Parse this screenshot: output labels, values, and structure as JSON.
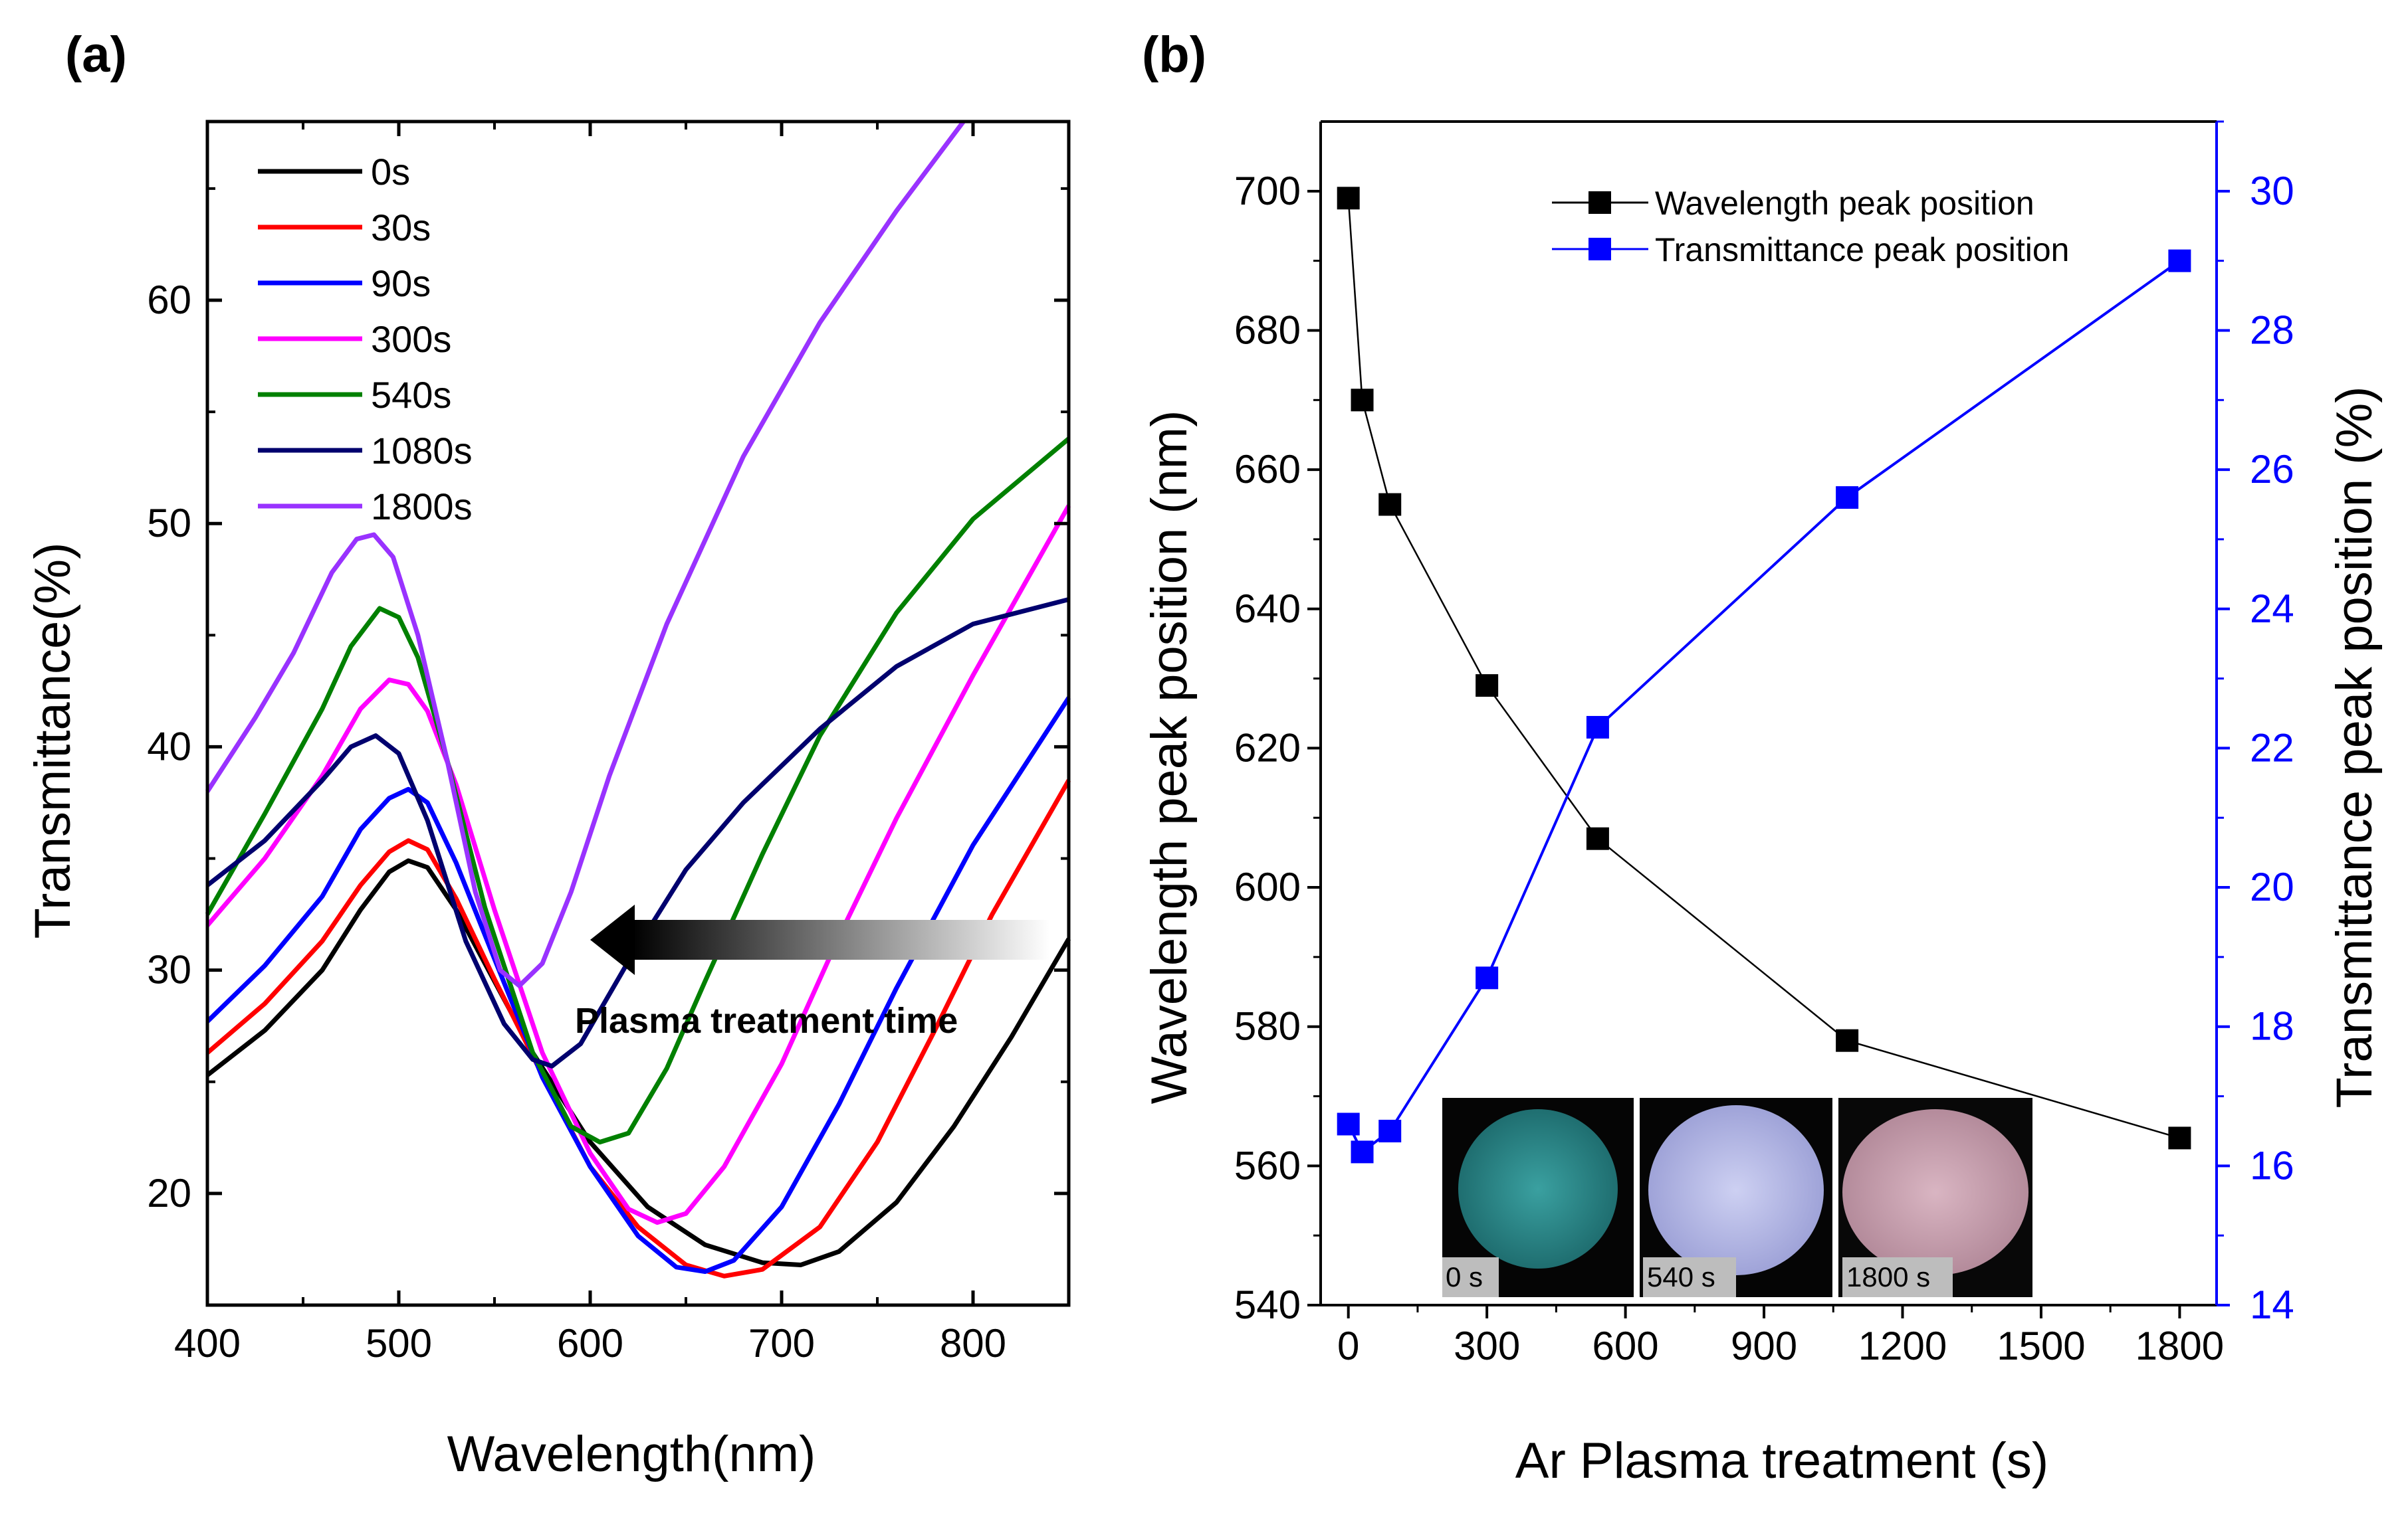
{
  "panels": [
    {
      "id": "a",
      "label": "(a)"
    },
    {
      "id": "b",
      "label": "(b)"
    }
  ],
  "annotation_arrow": {
    "text": "Plasma treatment time"
  },
  "insets": [
    {
      "label": "0 s",
      "color": "#2f8d8e"
    },
    {
      "label": "540 s",
      "color": "#b3b7e6"
    },
    {
      "label": "1800 s",
      "color": "#c8a3b1"
    }
  ],
  "chart_data": [
    {
      "type": "line",
      "panel": "a",
      "xlabel": "Wavelength(nm)",
      "ylabel": "Transmittance(%)",
      "xlim": [
        400,
        850
      ],
      "ylim": [
        15,
        68
      ],
      "xticks": [
        400,
        500,
        600,
        700,
        800
      ],
      "yticks": [
        20,
        30,
        40,
        50,
        60
      ],
      "legend_position": "top-left",
      "series": [
        {
          "name": "0s",
          "color": "#000000",
          "points": [
            [
              400,
              25.3
            ],
            [
              430,
              27.3
            ],
            [
              460,
              30.0
            ],
            [
              480,
              32.7
            ],
            [
              495,
              34.4
            ],
            [
              505,
              34.9
            ],
            [
              515,
              34.6
            ],
            [
              530,
              32.7
            ],
            [
              550,
              29.5
            ],
            [
              570,
              26.3
            ],
            [
              600,
              22.3
            ],
            [
              630,
              19.4
            ],
            [
              660,
              17.7
            ],
            [
              690,
              16.9
            ],
            [
              710,
              16.8
            ],
            [
              730,
              17.4
            ],
            [
              760,
              19.6
            ],
            [
              790,
              23.0
            ],
            [
              820,
              27.0
            ],
            [
              850,
              31.4
            ]
          ]
        },
        {
          "name": "30s",
          "color": "#ff0000",
          "points": [
            [
              400,
              26.3
            ],
            [
              430,
              28.5
            ],
            [
              460,
              31.3
            ],
            [
              480,
              33.8
            ],
            [
              495,
              35.3
            ],
            [
              505,
              35.8
            ],
            [
              515,
              35.4
            ],
            [
              530,
              33.2
            ],
            [
              550,
              29.6
            ],
            [
              575,
              25.3
            ],
            [
              600,
              21.2
            ],
            [
              625,
              18.5
            ],
            [
              650,
              16.8
            ],
            [
              670,
              16.3
            ],
            [
              690,
              16.6
            ],
            [
              720,
              18.5
            ],
            [
              750,
              22.3
            ],
            [
              780,
              27.3
            ],
            [
              810,
              32.5
            ],
            [
              850,
              38.5
            ]
          ]
        },
        {
          "name": "90s",
          "color": "#0000ff",
          "points": [
            [
              400,
              27.7
            ],
            [
              430,
              30.2
            ],
            [
              460,
              33.3
            ],
            [
              480,
              36.3
            ],
            [
              495,
              37.7
            ],
            [
              505,
              38.1
            ],
            [
              515,
              37.5
            ],
            [
              530,
              34.8
            ],
            [
              550,
              30.5
            ],
            [
              575,
              25.2
            ],
            [
              600,
              21.2
            ],
            [
              625,
              18.1
            ],
            [
              645,
              16.7
            ],
            [
              660,
              16.5
            ],
            [
              675,
              17.0
            ],
            [
              700,
              19.4
            ],
            [
              730,
              24.0
            ],
            [
              760,
              29.2
            ],
            [
              800,
              35.6
            ],
            [
              850,
              42.2
            ]
          ]
        },
        {
          "name": "300s",
          "color": "#ff00ff",
          "points": [
            [
              400,
              32.0
            ],
            [
              430,
              35.0
            ],
            [
              460,
              38.7
            ],
            [
              480,
              41.7
            ],
            [
              495,
              43.0
            ],
            [
              505,
              42.8
            ],
            [
              515,
              41.6
            ],
            [
              530,
              38.3
            ],
            [
              550,
              32.7
            ],
            [
              575,
              26.3
            ],
            [
              600,
              21.8
            ],
            [
              620,
              19.3
            ],
            [
              635,
              18.7
            ],
            [
              650,
              19.1
            ],
            [
              670,
              21.2
            ],
            [
              700,
              25.8
            ],
            [
              730,
              31.5
            ],
            [
              760,
              36.8
            ],
            [
              800,
              43.2
            ],
            [
              850,
              50.8
            ]
          ]
        },
        {
          "name": "540s",
          "color": "#008000",
          "points": [
            [
              400,
              32.5
            ],
            [
              430,
              37.0
            ],
            [
              460,
              41.7
            ],
            [
              475,
              44.5
            ],
            [
              490,
              46.2
            ],
            [
              500,
              45.8
            ],
            [
              510,
              44.0
            ],
            [
              525,
              39.5
            ],
            [
              545,
              32.8
            ],
            [
              570,
              26.3
            ],
            [
              590,
              23.0
            ],
            [
              605,
              22.3
            ],
            [
              620,
              22.7
            ],
            [
              640,
              25.6
            ],
            [
              660,
              29.5
            ],
            [
              690,
              35.2
            ],
            [
              720,
              40.5
            ],
            [
              760,
              46.0
            ],
            [
              800,
              50.2
            ],
            [
              850,
              53.8
            ]
          ]
        },
        {
          "name": "1080s",
          "color": "#00006e",
          "points": [
            [
              400,
              33.8
            ],
            [
              430,
              35.8
            ],
            [
              460,
              38.5
            ],
            [
              475,
              40.0
            ],
            [
              488,
              40.5
            ],
            [
              500,
              39.7
            ],
            [
              515,
              36.7
            ],
            [
              535,
              31.3
            ],
            [
              555,
              27.6
            ],
            [
              570,
              26.0
            ],
            [
              580,
              25.7
            ],
            [
              595,
              26.7
            ],
            [
              620,
              30.4
            ],
            [
              650,
              34.5
            ],
            [
              680,
              37.5
            ],
            [
              720,
              40.8
            ],
            [
              760,
              43.6
            ],
            [
              800,
              45.5
            ],
            [
              850,
              46.6
            ]
          ]
        },
        {
          "name": "1800s",
          "color": "#9932ff",
          "points": [
            [
              400,
              38.0
            ],
            [
              425,
              41.3
            ],
            [
              445,
              44.2
            ],
            [
              465,
              47.8
            ],
            [
              478,
              49.3
            ],
            [
              487,
              49.5
            ],
            [
              497,
              48.5
            ],
            [
              510,
              45.0
            ],
            [
              525,
              39.5
            ],
            [
              540,
              33.5
            ],
            [
              553,
              30.0
            ],
            [
              563,
              29.3
            ],
            [
              575,
              30.3
            ],
            [
              590,
              33.5
            ],
            [
              610,
              38.7
            ],
            [
              640,
              45.5
            ],
            [
              680,
              53.0
            ],
            [
              720,
              59.0
            ],
            [
              760,
              64.0
            ],
            [
              795,
              68.0
            ]
          ]
        }
      ]
    },
    {
      "type": "line",
      "panel": "b",
      "xlabel": "Ar Plasma treatment (s)",
      "ylabel": "Wavelength peak position (nm)",
      "ylabel_right": "Transmittance peak position (%)",
      "xlim": [
        -60,
        1880
      ],
      "ylim": [
        540,
        710
      ],
      "ylim_right": [
        14,
        31
      ],
      "xticks": [
        0,
        300,
        600,
        900,
        1200,
        1500,
        1800
      ],
      "yticks": [
        540,
        560,
        580,
        600,
        620,
        640,
        660,
        680,
        700
      ],
      "yticks_right": [
        14,
        16,
        18,
        20,
        22,
        24,
        26,
        28,
        30
      ],
      "legend_position": "top-right",
      "series": [
        {
          "name": "Wavelength peak position",
          "axis": "left",
          "color": "#000000",
          "x": [
            0,
            30,
            90,
            300,
            540,
            1080,
            1800
          ],
          "y": [
            699,
            670,
            655,
            629,
            607,
            578,
            564
          ]
        },
        {
          "name": "Transmittance peak position",
          "axis": "right",
          "color": "#0000ff",
          "x": [
            0,
            30,
            90,
            300,
            540,
            1080,
            1800
          ],
          "y": [
            16.6,
            16.2,
            16.5,
            18.7,
            22.3,
            25.6,
            29.0
          ]
        }
      ]
    }
  ]
}
